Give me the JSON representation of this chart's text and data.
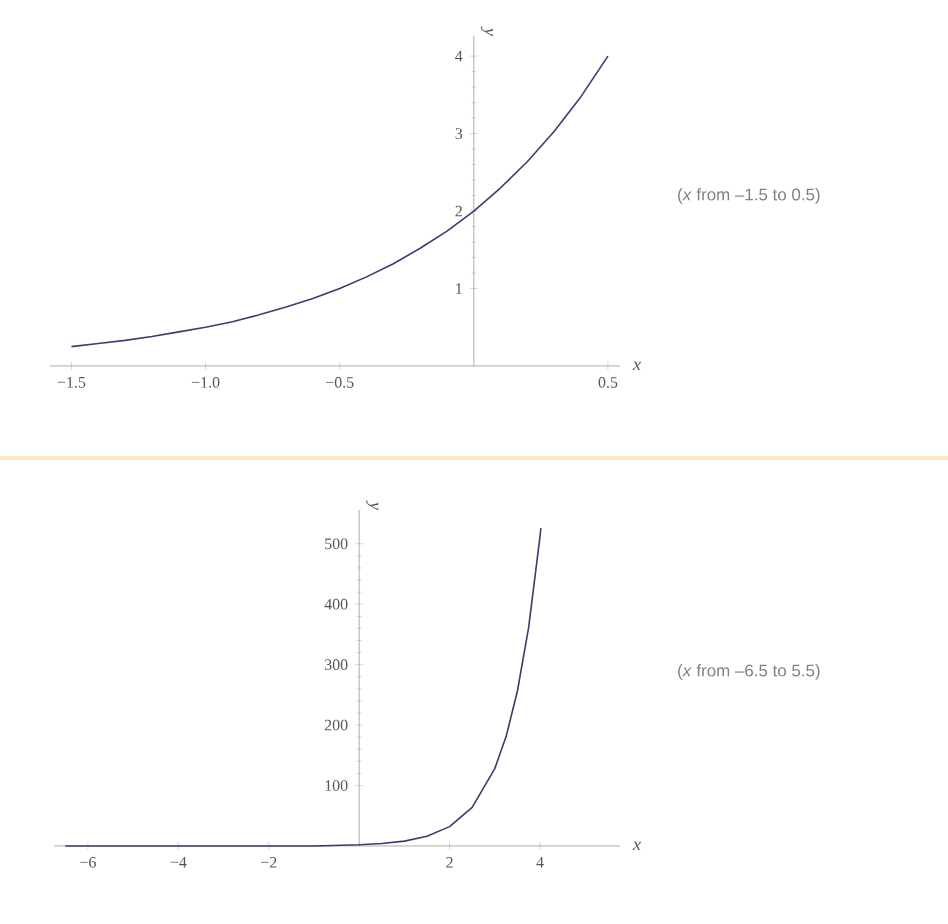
{
  "chart_data": [
    {
      "type": "line",
      "xlabel": "x",
      "ylabel": "y",
      "color": "#3b3b6e",
      "x": [
        -1.5,
        -1.4,
        -1.3,
        -1.2,
        -1.1,
        -1.0,
        -0.9,
        -0.8,
        -0.7,
        -0.6,
        -0.5,
        -0.4,
        -0.3,
        -0.2,
        -0.1,
        0,
        0.1,
        0.2,
        0.3,
        0.4,
        0.5
      ],
      "values": [
        0.25,
        0.29,
        0.33,
        0.38,
        0.44,
        0.5,
        0.57,
        0.66,
        0.76,
        0.87,
        1.0,
        1.15,
        1.32,
        1.52,
        1.74,
        2.0,
        2.3,
        2.64,
        3.03,
        3.48,
        4.0
      ],
      "xlim": [
        -1.58,
        0.545
      ],
      "ylim": [
        0,
        4.26
      ],
      "xticks": [
        {
          "value": -1.5,
          "label": "−1.5"
        },
        {
          "value": -1.0,
          "label": "−1.0"
        },
        {
          "value": -0.5,
          "label": "−0.5"
        },
        0.5
      ],
      "yticks": [
        1,
        2,
        3,
        4
      ],
      "annotations": [
        "(*x* from –1.5 to 0.5)"
      ]
    },
    {
      "type": "line",
      "xlabel": "x",
      "ylabel": "y",
      "color": "#3b3b6e",
      "x": [
        -6.5,
        -4,
        -2,
        -1,
        0,
        0.5,
        1,
        1.5,
        2,
        2.5,
        3,
        3.25,
        3.5,
        3.75,
        4,
        4.02
      ],
      "values": [
        0,
        0,
        0,
        0,
        2,
        4,
        8,
        16,
        32,
        64,
        128,
        181,
        256,
        362,
        512,
        526
      ],
      "xlim": [
        -6.75,
        5.77
      ],
      "ylim": [
        0,
        556
      ],
      "xticks": [
        {
          "value": -6,
          "label": "−6"
        },
        {
          "value": -4,
          "label": "−4"
        },
        {
          "value": -2,
          "label": "−2"
        },
        2,
        4
      ],
      "yticks": [
        100,
        200,
        300,
        400,
        500
      ],
      "annotations": [
        "(*x* from –6.5 to 5.5)"
      ]
    }
  ]
}
